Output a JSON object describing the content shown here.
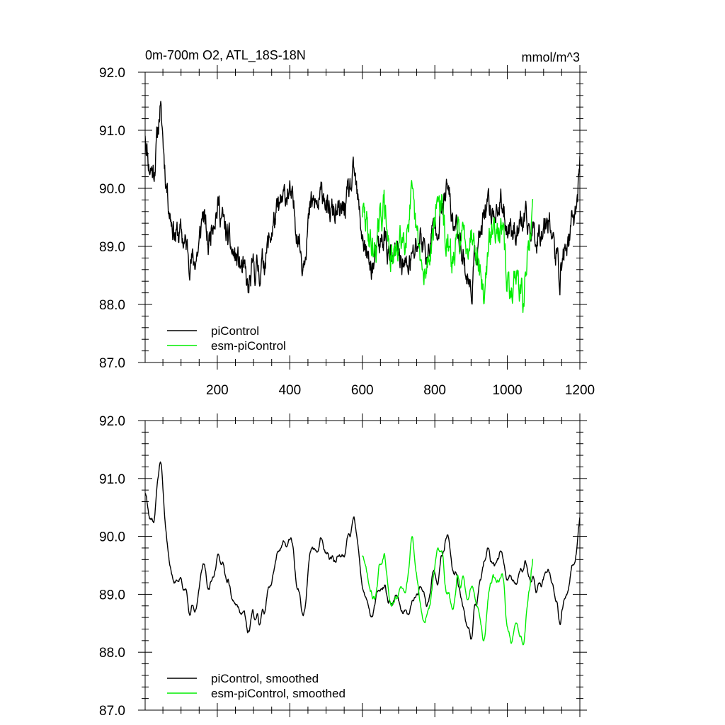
{
  "chart_data": [
    {
      "type": "line",
      "title": "0m-700m O2, ATL_18S-18N",
      "units": "mmol/m^3",
      "xlim": [
        1,
        1200
      ],
      "ylim": [
        87.0,
        92.0
      ],
      "xticks": [
        200,
        400,
        600,
        800,
        1000,
        1200
      ],
      "yticks": [
        "87.0",
        "88.0",
        "89.0",
        "90.0",
        "91.0",
        "92.0"
      ],
      "xtick_labels_shown": true,
      "legend_position": "bottom-left",
      "series": [
        {
          "name": "piControl",
          "color": "#000000",
          "x_range": [
            1,
            1200
          ],
          "seed": 11,
          "noise": 0.36,
          "anchors": [
            [
              1,
              91.0
            ],
            [
              12,
              90.4
            ],
            [
              25,
              90.3
            ],
            [
              35,
              90.9
            ],
            [
              42,
              91.4
            ],
            [
              48,
              91.0
            ],
            [
              58,
              90.2
            ],
            [
              70,
              89.6
            ],
            [
              85,
              89.2
            ],
            [
              100,
              89.2
            ],
            [
              120,
              88.9
            ],
            [
              135,
              88.7
            ],
            [
              150,
              89.0
            ],
            [
              160,
              89.6
            ],
            [
              175,
              89.0
            ],
            [
              190,
              89.6
            ],
            [
              205,
              89.7
            ],
            [
              220,
              89.3
            ],
            [
              240,
              88.9
            ],
            [
              260,
              88.7
            ],
            [
              275,
              88.5
            ],
            [
              285,
              88.2
            ],
            [
              300,
              88.6
            ],
            [
              320,
              88.6
            ],
            [
              340,
              89.0
            ],
            [
              355,
              89.4
            ],
            [
              370,
              89.6
            ],
            [
              385,
              89.8
            ],
            [
              395,
              90.0
            ],
            [
              410,
              89.6
            ],
            [
              425,
              89.2
            ],
            [
              435,
              88.7
            ],
            [
              445,
              89.2
            ],
            [
              460,
              89.7
            ],
            [
              480,
              89.7
            ],
            [
              495,
              90.0
            ],
            [
              505,
              89.5
            ],
            [
              520,
              89.6
            ],
            [
              540,
              89.5
            ],
            [
              560,
              89.8
            ],
            [
              578,
              90.2
            ],
            [
              590,
              89.6
            ],
            [
              600,
              89.2
            ],
            [
              620,
              88.6
            ],
            [
              640,
              88.8
            ],
            [
              660,
              89.2
            ],
            [
              680,
              88.7
            ],
            [
              700,
              88.9
            ],
            [
              720,
              88.6
            ],
            [
              740,
              88.8
            ],
            [
              760,
              89.2
            ],
            [
              780,
              88.8
            ],
            [
              800,
              89.4
            ],
            [
              820,
              89.6
            ],
            [
              835,
              90.0
            ],
            [
              850,
              89.4
            ],
            [
              870,
              89.2
            ],
            [
              885,
              88.6
            ],
            [
              900,
              88.2
            ],
            [
              915,
              89.0
            ],
            [
              930,
              89.3
            ],
            [
              945,
              89.6
            ],
            [
              960,
              89.6
            ],
            [
              980,
              89.7
            ],
            [
              1000,
              89.4
            ],
            [
              1020,
              89.3
            ],
            [
              1040,
              89.4
            ],
            [
              1060,
              89.3
            ],
            [
              1080,
              89.2
            ],
            [
              1100,
              89.4
            ],
            [
              1115,
              89.6
            ],
            [
              1130,
              88.9
            ],
            [
              1145,
              88.5
            ],
            [
              1160,
              89.0
            ],
            [
              1175,
              89.2
            ],
            [
              1185,
              89.5
            ],
            [
              1195,
              90.0
            ],
            [
              1200,
              90.5
            ]
          ]
        },
        {
          "name": "esm-piControl",
          "color": "#00ee00",
          "x_range": [
            600,
            1070
          ],
          "seed": 29,
          "noise": 0.4,
          "anchors": [
            [
              600,
              89.6
            ],
            [
              615,
              89.3
            ],
            [
              630,
              88.9
            ],
            [
              645,
              89.2
            ],
            [
              660,
              89.8
            ],
            [
              670,
              89.1
            ],
            [
              685,
              88.7
            ],
            [
              700,
              89.0
            ],
            [
              720,
              89.3
            ],
            [
              735,
              89.8
            ],
            [
              745,
              89.3
            ],
            [
              760,
              88.8
            ],
            [
              770,
              88.3
            ],
            [
              780,
              88.7
            ],
            [
              795,
              89.3
            ],
            [
              810,
              89.9
            ],
            [
              820,
              89.6
            ],
            [
              835,
              88.9
            ],
            [
              850,
              88.7
            ],
            [
              865,
              89.2
            ],
            [
              880,
              89.1
            ],
            [
              895,
              89.2
            ],
            [
              910,
              89.3
            ],
            [
              925,
              88.6
            ],
            [
              935,
              88.1
            ],
            [
              945,
              88.8
            ],
            [
              960,
              89.3
            ],
            [
              975,
              89.5
            ],
            [
              990,
              89.0
            ],
            [
              1000,
              88.4
            ],
            [
              1010,
              88.0
            ],
            [
              1020,
              88.6
            ],
            [
              1035,
              88.3
            ],
            [
              1045,
              88.0
            ],
            [
              1055,
              88.8
            ],
            [
              1065,
              89.4
            ],
            [
              1070,
              89.5
            ]
          ]
        }
      ]
    },
    {
      "type": "line",
      "title": "",
      "xlim": [
        1,
        1200
      ],
      "ylim": [
        87.0,
        92.0
      ],
      "xticks": [
        200,
        400,
        600,
        800,
        1000,
        1200
      ],
      "yticks": [
        "87.0",
        "88.0",
        "89.0",
        "90.0",
        "91.0",
        "92.0"
      ],
      "xtick_labels_shown": false,
      "legend_position": "bottom-left",
      "series": [
        {
          "name": "piControl, smoothed",
          "color": "#000000",
          "x_range": [
            1,
            1200
          ],
          "seed": 11,
          "noise": 0.36,
          "smooth": 4,
          "anchors": [
            [
              1,
              91.0
            ],
            [
              12,
              90.4
            ],
            [
              25,
              90.3
            ],
            [
              35,
              90.9
            ],
            [
              42,
              91.4
            ],
            [
              48,
              91.0
            ],
            [
              58,
              90.2
            ],
            [
              70,
              89.6
            ],
            [
              85,
              89.2
            ],
            [
              100,
              89.2
            ],
            [
              120,
              88.9
            ],
            [
              135,
              88.7
            ],
            [
              150,
              89.0
            ],
            [
              160,
              89.6
            ],
            [
              175,
              89.0
            ],
            [
              190,
              89.6
            ],
            [
              205,
              89.7
            ],
            [
              220,
              89.3
            ],
            [
              240,
              88.9
            ],
            [
              260,
              88.7
            ],
            [
              275,
              88.5
            ],
            [
              285,
              88.2
            ],
            [
              300,
              88.6
            ],
            [
              320,
              88.6
            ],
            [
              340,
              89.0
            ],
            [
              355,
              89.4
            ],
            [
              370,
              89.6
            ],
            [
              385,
              89.8
            ],
            [
              395,
              90.0
            ],
            [
              410,
              89.6
            ],
            [
              425,
              89.2
            ],
            [
              435,
              88.7
            ],
            [
              445,
              89.2
            ],
            [
              460,
              89.7
            ],
            [
              480,
              89.7
            ],
            [
              495,
              90.0
            ],
            [
              505,
              89.5
            ],
            [
              520,
              89.6
            ],
            [
              540,
              89.5
            ],
            [
              560,
              89.8
            ],
            [
              578,
              90.2
            ],
            [
              590,
              89.6
            ],
            [
              600,
              89.2
            ],
            [
              620,
              88.6
            ],
            [
              640,
              88.8
            ],
            [
              660,
              89.2
            ],
            [
              680,
              88.7
            ],
            [
              700,
              88.9
            ],
            [
              720,
              88.6
            ],
            [
              740,
              88.8
            ],
            [
              760,
              89.2
            ],
            [
              780,
              88.8
            ],
            [
              800,
              89.4
            ],
            [
              820,
              89.6
            ],
            [
              835,
              90.0
            ],
            [
              850,
              89.4
            ],
            [
              870,
              89.2
            ],
            [
              885,
              88.6
            ],
            [
              900,
              88.2
            ],
            [
              915,
              89.0
            ],
            [
              930,
              89.3
            ],
            [
              945,
              89.6
            ],
            [
              960,
              89.6
            ],
            [
              980,
              89.7
            ],
            [
              1000,
              89.4
            ],
            [
              1020,
              89.3
            ],
            [
              1040,
              89.4
            ],
            [
              1060,
              89.3
            ],
            [
              1080,
              89.2
            ],
            [
              1100,
              89.4
            ],
            [
              1115,
              89.6
            ],
            [
              1130,
              88.9
            ],
            [
              1145,
              88.5
            ],
            [
              1160,
              89.0
            ],
            [
              1175,
              89.2
            ],
            [
              1185,
              89.5
            ],
            [
              1195,
              90.0
            ],
            [
              1200,
              90.5
            ]
          ]
        },
        {
          "name": "esm-piControl, smoothed",
          "color": "#00ee00",
          "x_range": [
            600,
            1070
          ],
          "seed": 29,
          "noise": 0.4,
          "smooth": 4,
          "anchors": [
            [
              600,
              89.6
            ],
            [
              615,
              89.3
            ],
            [
              630,
              88.9
            ],
            [
              645,
              89.2
            ],
            [
              660,
              89.8
            ],
            [
              670,
              89.1
            ],
            [
              685,
              88.7
            ],
            [
              700,
              89.0
            ],
            [
              720,
              89.3
            ],
            [
              735,
              89.8
            ],
            [
              745,
              89.3
            ],
            [
              760,
              88.8
            ],
            [
              770,
              88.3
            ],
            [
              780,
              88.7
            ],
            [
              795,
              89.3
            ],
            [
              810,
              89.9
            ],
            [
              820,
              89.6
            ],
            [
              835,
              88.9
            ],
            [
              850,
              88.7
            ],
            [
              865,
              89.2
            ],
            [
              880,
              89.1
            ],
            [
              895,
              89.2
            ],
            [
              910,
              89.3
            ],
            [
              925,
              88.6
            ],
            [
              935,
              88.1
            ],
            [
              945,
              88.8
            ],
            [
              960,
              89.3
            ],
            [
              975,
              89.5
            ],
            [
              990,
              89.0
            ],
            [
              1000,
              88.4
            ],
            [
              1010,
              88.0
            ],
            [
              1020,
              88.6
            ],
            [
              1035,
              88.3
            ],
            [
              1045,
              88.0
            ],
            [
              1055,
              88.8
            ],
            [
              1065,
              89.4
            ],
            [
              1070,
              89.5
            ]
          ]
        }
      ]
    }
  ]
}
